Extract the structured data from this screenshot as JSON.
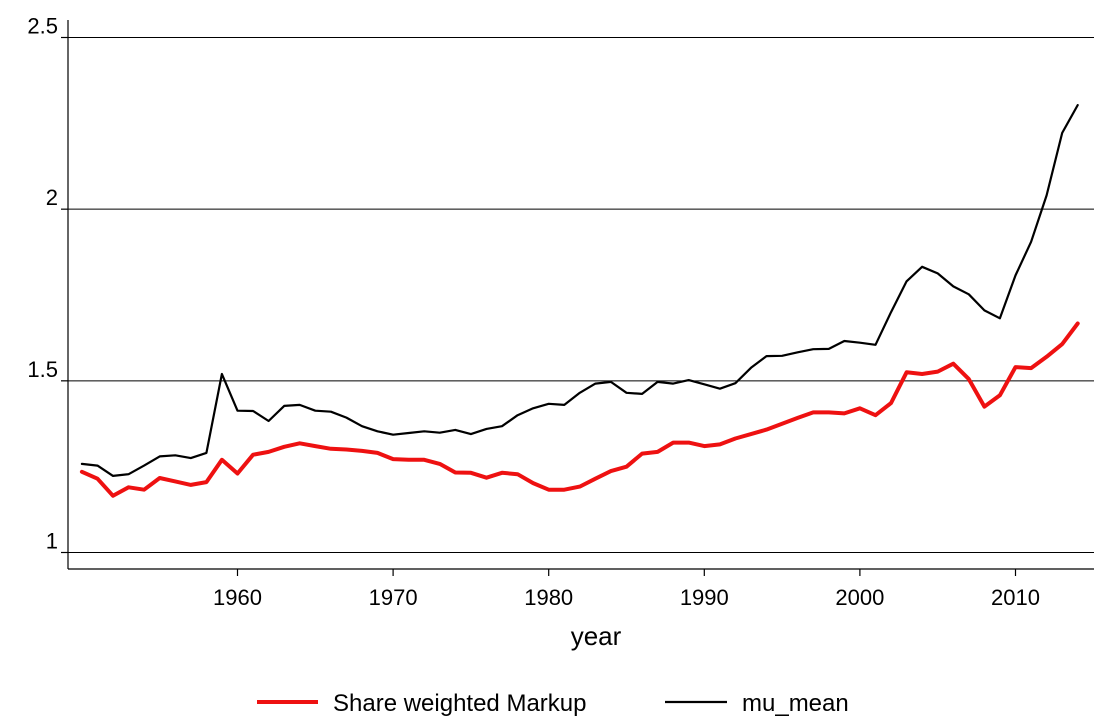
{
  "chart_data": {
    "type": "line",
    "xlabel": "year",
    "ylabel": "",
    "xlim": [
      1950,
      2014
    ],
    "ylim": [
      1,
      2.5
    ],
    "x_ticks": [
      1960,
      1970,
      1980,
      1990,
      2000,
      2010
    ],
    "x_tick_labels": [
      "1960",
      "1970",
      "1980",
      "1990",
      "2000",
      "2010"
    ],
    "y_ticks": [
      1,
      1.5,
      2,
      2.5
    ],
    "y_tick_labels": [
      "1",
      "1.5",
      "2",
      "2.5"
    ],
    "grid": "horizontal",
    "legend_position": "bottom",
    "x": [
      1950,
      1951,
      1952,
      1953,
      1954,
      1955,
      1956,
      1957,
      1958,
      1959,
      1960,
      1961,
      1962,
      1963,
      1964,
      1965,
      1966,
      1967,
      1968,
      1969,
      1970,
      1971,
      1972,
      1973,
      1974,
      1975,
      1976,
      1977,
      1978,
      1979,
      1980,
      1981,
      1982,
      1983,
      1984,
      1985,
      1986,
      1987,
      1988,
      1989,
      1990,
      1991,
      1992,
      1993,
      1994,
      1995,
      1996,
      1997,
      1998,
      1999,
      2000,
      2001,
      2002,
      2003,
      2004,
      2005,
      2006,
      2007,
      2008,
      2009,
      2010,
      2011,
      2012,
      2013,
      2014
    ],
    "series": [
      {
        "name": "Share weighted Markup",
        "color": "#ee1111",
        "values": [
          1.235,
          1.215,
          1.165,
          1.19,
          1.183,
          1.217,
          1.207,
          1.197,
          1.205,
          1.27,
          1.23,
          1.285,
          1.293,
          1.308,
          1.318,
          1.31,
          1.302,
          1.3,
          1.296,
          1.29,
          1.272,
          1.27,
          1.27,
          1.258,
          1.233,
          1.232,
          1.218,
          1.232,
          1.228,
          1.202,
          1.183,
          1.183,
          1.192,
          1.215,
          1.237,
          1.25,
          1.288,
          1.293,
          1.32,
          1.32,
          1.31,
          1.315,
          1.332,
          1.345,
          1.358,
          1.375,
          1.392,
          1.408,
          1.408,
          1.405,
          1.42,
          1.4,
          1.435,
          1.525,
          1.52,
          1.527,
          1.55,
          1.505,
          1.425,
          1.458,
          1.54,
          1.537,
          1.57,
          1.607,
          1.667
        ]
      },
      {
        "name": "mu_mean",
        "color": "#000000",
        "values": [
          1.258,
          1.253,
          1.223,
          1.228,
          1.253,
          1.28,
          1.283,
          1.275,
          1.29,
          1.52,
          1.413,
          1.412,
          1.383,
          1.427,
          1.43,
          1.413,
          1.41,
          1.393,
          1.368,
          1.353,
          1.343,
          1.348,
          1.353,
          1.349,
          1.357,
          1.345,
          1.36,
          1.368,
          1.4,
          1.42,
          1.433,
          1.43,
          1.465,
          1.492,
          1.497,
          1.465,
          1.462,
          1.497,
          1.492,
          1.502,
          1.49,
          1.477,
          1.493,
          1.538,
          1.572,
          1.573,
          1.583,
          1.592,
          1.593,
          1.616,
          1.611,
          1.605,
          1.7,
          1.79,
          1.832,
          1.813,
          1.775,
          1.752,
          1.705,
          1.682,
          1.807,
          1.905,
          2.04,
          2.222,
          2.303
        ]
      }
    ],
    "legend": [
      {
        "label": "Share weighted Markup",
        "color": "#ee1111"
      },
      {
        "label": "mu_mean",
        "color": "#000000"
      }
    ]
  }
}
